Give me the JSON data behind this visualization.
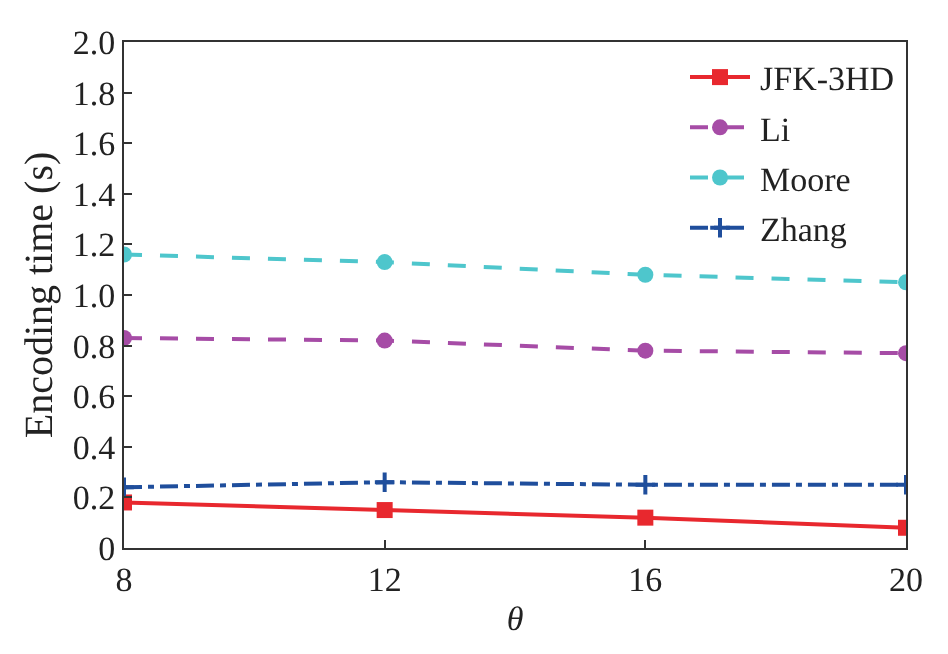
{
  "chart_data": {
    "type": "line",
    "xlabel": "θ",
    "ylabel": "Encoding time (s)",
    "x": [
      8,
      12,
      16,
      20
    ],
    "series": [
      {
        "name": "JFK-3HD",
        "color": "#e8282e",
        "values": [
          0.18,
          0.15,
          0.12,
          0.08
        ],
        "marker": "square",
        "line_style": "solid"
      },
      {
        "name": "Li",
        "color": "#a64ca6",
        "values": [
          0.83,
          0.82,
          0.78,
          0.77
        ],
        "marker": "circle",
        "line_style": "dashed"
      },
      {
        "name": "Moore",
        "color": "#4ec6cc",
        "values": [
          1.16,
          1.13,
          1.08,
          1.05
        ],
        "marker": "circle",
        "line_style": "dashed"
      },
      {
        "name": "Zhang",
        "color": "#1f4e9c",
        "values": [
          0.24,
          0.26,
          0.25,
          0.25
        ],
        "marker": "cross",
        "line_style": "dashdot"
      }
    ],
    "xlim": [
      8,
      20
    ],
    "xticks": [
      8,
      12,
      16,
      20
    ],
    "ylim": [
      0,
      2
    ],
    "yticks": [
      {
        "value": 0,
        "label": "0"
      },
      0.2,
      0.4,
      0.6,
      0.8,
      {
        "value": 1,
        "label": "1.0"
      },
      1.2,
      1.4,
      1.6,
      1.8,
      {
        "value": 2,
        "label": "2.0"
      }
    ],
    "grid": false,
    "legend": "top right"
  }
}
